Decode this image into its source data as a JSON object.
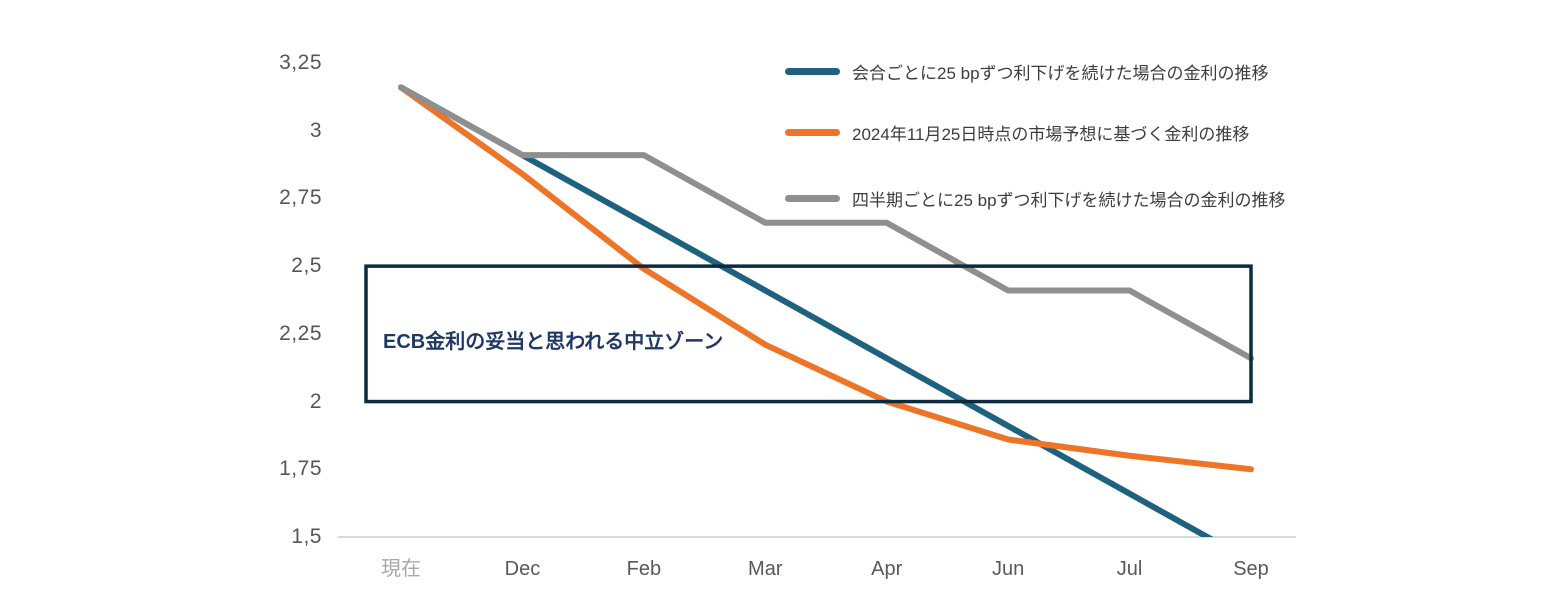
{
  "chart_data": {
    "type": "line",
    "categories": [
      "現在",
      "Dec",
      "Feb",
      "Mar",
      "Apr",
      "Jun",
      "Jul",
      "Sep"
    ],
    "series": [
      {
        "name": "会合ごとに25 bpずつ利下げを続けた場合の金利の推移",
        "color": "#1f627f",
        "values": [
          3.16,
          2.91,
          2.66,
          2.41,
          2.16,
          1.91,
          1.66,
          1.41
        ]
      },
      {
        "name": "2024年11月25日時点の市場予想に基づく金利の推移",
        "color": "#ee7527",
        "values": [
          3.16,
          2.84,
          2.49,
          2.21,
          2.0,
          1.86,
          1.8,
          1.75
        ]
      },
      {
        "name": "四半期ごとに25 bpずつ利下げを続けた場合の金利の推移",
        "color": "#8f8f8f",
        "values": [
          3.16,
          2.91,
          2.91,
          2.66,
          2.66,
          2.41,
          2.41,
          2.16
        ]
      }
    ],
    "title": "",
    "xlabel": "",
    "ylabel": "",
    "ylim": [
      1.5,
      3.25
    ],
    "ytick_labels": [
      "3,25",
      "3",
      "2,75",
      "2,5",
      "2,25",
      "2",
      "1,75",
      "1,5"
    ],
    "grid": false,
    "legend_position": "top-right",
    "axis_line_color": "#d9d9d9",
    "annotation_box": {
      "label": "ECB金利の妥当と思われる中立ゾーン",
      "y_from": 2.0,
      "y_to": 2.5,
      "border_color": "#0d2b3e",
      "label_color": "#1f3864"
    }
  }
}
